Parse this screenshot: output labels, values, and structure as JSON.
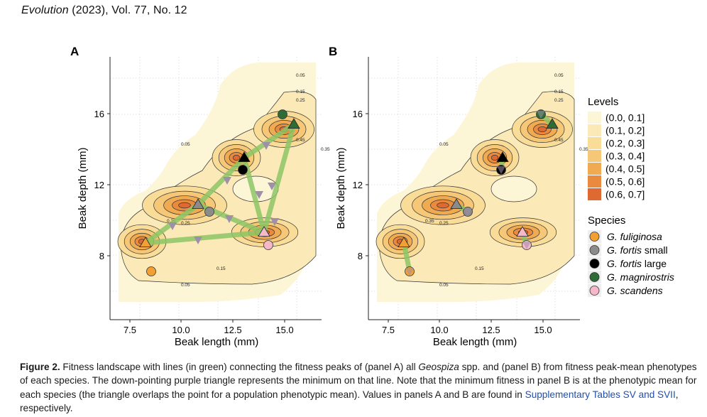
{
  "header": {
    "journal": "Evolution",
    "rest": " (2023), Vol. 77, No. 12"
  },
  "figure": {
    "panels": [
      {
        "label": "A",
        "xlabel": "Beak length (mm)",
        "ylabel": "Beak depth (mm)"
      },
      {
        "label": "B",
        "xlabel": "Beak length (mm)",
        "ylabel": "Beak depth (mm)"
      }
    ],
    "x_ticks": [
      "7.5",
      "10.0",
      "12.5",
      "15.0"
    ],
    "y_ticks": [
      "8",
      "12",
      "16"
    ],
    "contour_labels": [
      "0.05",
      "0.15",
      "0.25",
      "0.35",
      "0.45",
      "0.55"
    ],
    "legend_levels_title": "Levels",
    "levels": [
      {
        "label": "(0.0, 0.1]",
        "color": "#fdf6d6"
      },
      {
        "label": "(0.1, 0.2]",
        "color": "#fbeab7"
      },
      {
        "label": "(0.2, 0.3]",
        "color": "#f8dc97"
      },
      {
        "label": "(0.3, 0.4]",
        "color": "#f5c776"
      },
      {
        "label": "(0.4, 0.5]",
        "color": "#f0aa52"
      },
      {
        "label": "(0.5, 0.6]",
        "color": "#ea8a3e"
      },
      {
        "label": "(0.6, 0.7]",
        "color": "#de6a32"
      }
    ],
    "legend_species_title": "Species",
    "species": [
      {
        "label": "G. fuliginosa",
        "italic": "G. fuliginosa",
        "suffix": "",
        "color": "#f2a033"
      },
      {
        "label": "G. fortis small",
        "italic": "G. fortis",
        "suffix": " small",
        "color": "#8b8b8b"
      },
      {
        "label": "G. fortis large",
        "italic": "G. fortis",
        "suffix": " large",
        "color": "#000000"
      },
      {
        "label": "G. magnirostris",
        "italic": "G. magnirostris",
        "suffix": "",
        "color": "#2e6b35"
      },
      {
        "label": "G. scandens",
        "italic": "G. scandens",
        "suffix": "",
        "color": "#f4b8c8"
      }
    ]
  },
  "caption": {
    "label": "Figure 2.",
    "t1": " Fitness landscape with lines (in green) connecting the fitness peaks of (panel A) all ",
    "genus": "Geospiza",
    "t2": " spp. and (panel B) from fitness peak-mean phenotypes of each species. The down-pointing purple triangle represents the minimum on that line. Note that the minimum fitness in panel B is at the phenotypic mean for each species (the triangle overlaps the point for a population phenotypic mean). Values in panels A and B are found in ",
    "link": "Supplementary Tables SV and SVII",
    "t3": ", respectively."
  }
}
